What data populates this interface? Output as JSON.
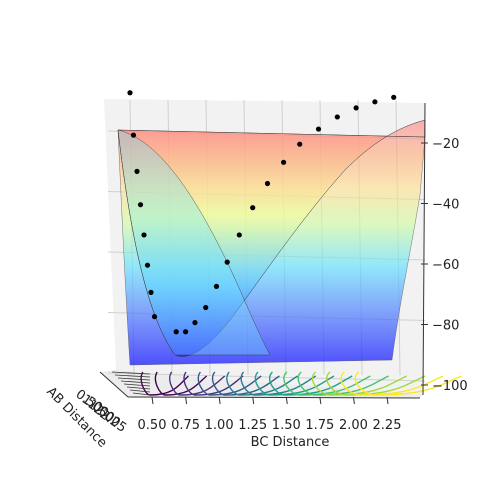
{
  "chart_data": {
    "type": "surface",
    "title": "",
    "xlabel": "BC Distance",
    "ylabel": "AB Distance",
    "zlabel": "",
    "x_ticks": [
      "0.50",
      "0.75",
      "1.00",
      "1.25",
      "1.50",
      "1.75",
      "2.00",
      "2.25"
    ],
    "y_ticks": [
      "0.50",
      "1.00",
      "1.50",
      "2.00",
      "2.25"
    ],
    "z_ticks": [
      "−20",
      "−40",
      "−60",
      "−80",
      "−100"
    ],
    "z_tick_values": [
      -20,
      -40,
      -60,
      -80,
      -100
    ],
    "zlim": [
      -104,
      -10
    ],
    "xlim": [
      0.3,
      2.45
    ],
    "grid": true,
    "colormap_surface": "jet",
    "colormap_contours": "viridis",
    "trajectory": {
      "color": "#000000",
      "points": [
        {
          "x": 0.42,
          "z": -10
        },
        {
          "x": 0.45,
          "z": -24
        },
        {
          "x": 0.48,
          "z": -36
        },
        {
          "x": 0.5,
          "z": -47
        },
        {
          "x": 0.52,
          "z": -57
        },
        {
          "x": 0.55,
          "z": -67
        },
        {
          "x": 0.58,
          "z": -76
        },
        {
          "x": 0.62,
          "z": -84
        },
        {
          "x": 0.68,
          "z": -89
        },
        {
          "x": 0.75,
          "z": -89
        },
        {
          "x": 0.82,
          "z": -86
        },
        {
          "x": 0.9,
          "z": -81
        },
        {
          "x": 0.98,
          "z": -74
        },
        {
          "x": 1.06,
          "z": -66
        },
        {
          "x": 1.15,
          "z": -57
        },
        {
          "x": 1.25,
          "z": -48
        },
        {
          "x": 1.36,
          "z": -40
        },
        {
          "x": 1.48,
          "z": -33
        },
        {
          "x": 1.6,
          "z": -27
        },
        {
          "x": 1.74,
          "z": -22
        },
        {
          "x": 1.88,
          "z": -18
        },
        {
          "x": 2.02,
          "z": -15
        },
        {
          "x": 2.16,
          "z": -13
        },
        {
          "x": 2.3,
          "z": -11.5
        }
      ]
    }
  }
}
